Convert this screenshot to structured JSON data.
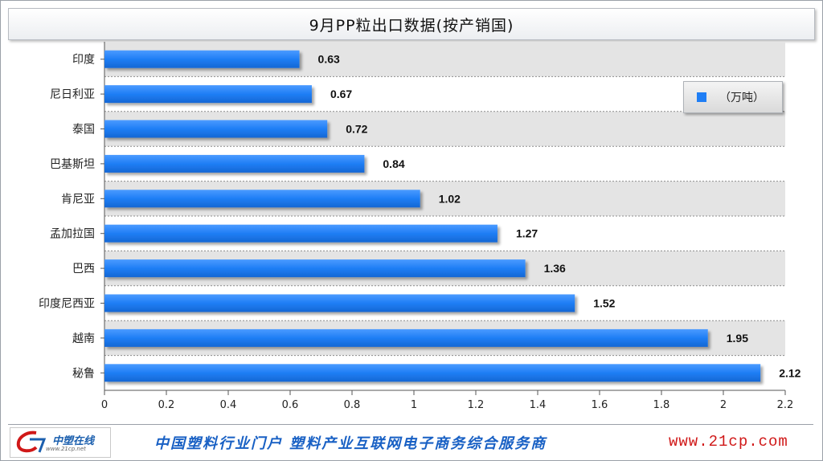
{
  "colors": {
    "bar": "#1f7ef5",
    "band_alt": "#e4e4e4",
    "band": "#ffffff",
    "slogan": "#1860c4",
    "url": "#d01818"
  },
  "chart_data": {
    "type": "bar",
    "orientation": "horizontal",
    "title": "9月PP粒出口数据(按产销国)",
    "categories": [
      "印度",
      "尼日利亚",
      "泰国",
      "巴基斯坦",
      "肯尼亚",
      "孟加拉国",
      "巴西",
      "印度尼西亚",
      "越南",
      "秘鲁"
    ],
    "series": [
      {
        "name": "（万吨）",
        "values": [
          0.63,
          0.67,
          0.72,
          0.84,
          1.02,
          1.27,
          1.36,
          1.52,
          1.95,
          2.12
        ],
        "labels": [
          "0.63",
          "0.67",
          "0.72",
          "0.84",
          "1.02",
          "1.27",
          "1.36",
          "1.52",
          "1.95",
          "2.12"
        ]
      }
    ],
    "x_ticks": [
      "0",
      "0.2",
      "0.4",
      "0.6",
      "0.8",
      "1",
      "1.2",
      "1.4",
      "1.6",
      "1.8",
      "2",
      "2.2"
    ],
    "xlim": [
      0,
      2.2
    ],
    "xlabel": "",
    "ylabel": "",
    "legend": {
      "position": "top-right",
      "label": "（万吨）"
    },
    "grid": true
  },
  "footer": {
    "logo_text": "中塑在线",
    "logo_sub": "www.21cp.net",
    "slogan": "中国塑料行业门户 塑料产业互联网电子商务综合服务商",
    "url": "www.21cp.com"
  }
}
